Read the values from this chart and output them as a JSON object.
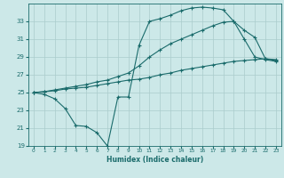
{
  "xlabel": "Humidex (Indice chaleur)",
  "bg_color": "#cce8e8",
  "grid_color": "#aacccc",
  "line_color": "#1a6b6b",
  "line1_x": [
    0,
    1,
    2,
    3,
    4,
    5,
    6,
    7,
    8,
    9,
    10,
    11,
    12,
    13,
    14,
    15,
    16,
    17,
    18,
    19,
    20,
    21,
    22,
    23
  ],
  "line1_y": [
    25.0,
    24.8,
    24.3,
    23.2,
    21.3,
    21.2,
    20.5,
    19.0,
    24.5,
    24.5,
    30.3,
    33.0,
    33.3,
    33.7,
    34.2,
    34.5,
    34.6,
    34.5,
    34.3,
    33.0,
    31.0,
    29.0,
    28.7,
    28.5
  ],
  "line2_x": [
    0,
    1,
    2,
    3,
    4,
    5,
    6,
    7,
    8,
    9,
    10,
    11,
    12,
    13,
    14,
    15,
    16,
    17,
    18,
    19,
    20,
    21,
    22,
    23
  ],
  "line2_y": [
    25.0,
    25.1,
    25.2,
    25.4,
    25.5,
    25.6,
    25.8,
    26.0,
    26.2,
    26.4,
    26.5,
    26.7,
    27.0,
    27.2,
    27.5,
    27.7,
    27.9,
    28.1,
    28.3,
    28.5,
    28.6,
    28.7,
    28.8,
    28.7
  ],
  "line3_x": [
    0,
    1,
    2,
    3,
    4,
    5,
    6,
    7,
    8,
    9,
    10,
    11,
    12,
    13,
    14,
    15,
    16,
    17,
    18,
    19,
    20,
    21,
    22,
    23
  ],
  "line3_y": [
    25.0,
    25.1,
    25.3,
    25.5,
    25.7,
    25.9,
    26.2,
    26.4,
    26.8,
    27.2,
    28.0,
    29.0,
    29.8,
    30.5,
    31.0,
    31.5,
    32.0,
    32.5,
    32.9,
    33.0,
    32.0,
    31.2,
    28.8,
    28.6
  ],
  "ylim": [
    19,
    35
  ],
  "xlim": [
    -0.5,
    23.5
  ],
  "yticks": [
    19,
    21,
    23,
    25,
    27,
    29,
    31,
    33
  ],
  "xticks": [
    0,
    1,
    2,
    3,
    4,
    5,
    6,
    7,
    8,
    9,
    10,
    11,
    12,
    13,
    14,
    15,
    16,
    17,
    18,
    19,
    20,
    21,
    22,
    23
  ],
  "marker": "+",
  "markersize": 3,
  "linewidth": 0.8
}
